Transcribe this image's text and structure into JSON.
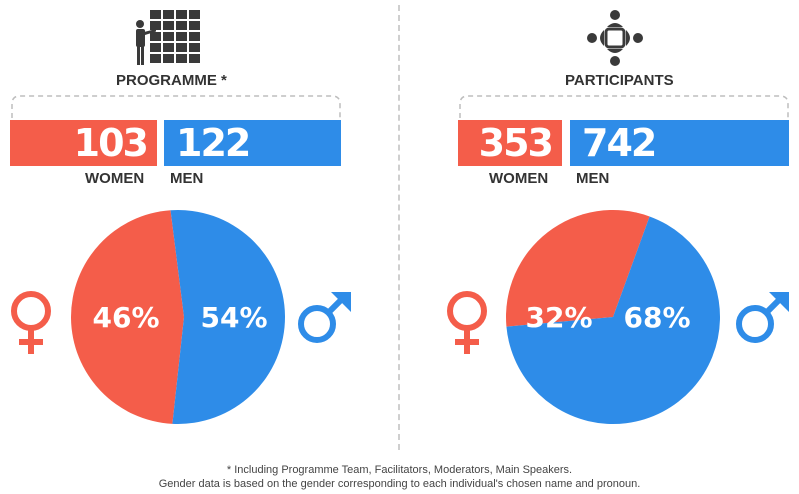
{
  "colors": {
    "women": "#f45d4a",
    "men": "#2e8ce8",
    "icon": "#3a3a3a"
  },
  "icons": {
    "programme": "presenter-grid-icon",
    "participants": "people-table-icon",
    "female": "female-symbol-icon",
    "male": "male-symbol-icon"
  },
  "programme": {
    "title": "PROGRAMME *",
    "women_count": "103",
    "men_count": "122",
    "women_label": "WOMEN",
    "men_label": "MEN",
    "women_pct_label": "46%",
    "men_pct_label": "54%"
  },
  "participants": {
    "title": "PARTICIPANTS",
    "women_count": "353",
    "men_count": "742",
    "women_label": "WOMEN",
    "men_label": "MEN",
    "women_pct_label": "32%",
    "men_pct_label": "68%"
  },
  "footnote": {
    "line1": "* Including Programme Team, Facilitators, Moderators, Main Speakers.",
    "line2": "Gender data is based on the gender corresponding to each individual's chosen name and pronoun."
  },
  "chart_data": [
    {
      "type": "pie",
      "title": "PROGRAMME *",
      "categories": [
        "WOMEN",
        "MEN"
      ],
      "counts": [
        103,
        122
      ],
      "values": [
        46,
        54
      ],
      "labels": [
        "46%",
        "54%"
      ]
    },
    {
      "type": "pie",
      "title": "PARTICIPANTS",
      "categories": [
        "WOMEN",
        "MEN"
      ],
      "counts": [
        353,
        742
      ],
      "values": [
        32,
        68
      ],
      "labels": [
        "32%",
        "68%"
      ]
    }
  ]
}
